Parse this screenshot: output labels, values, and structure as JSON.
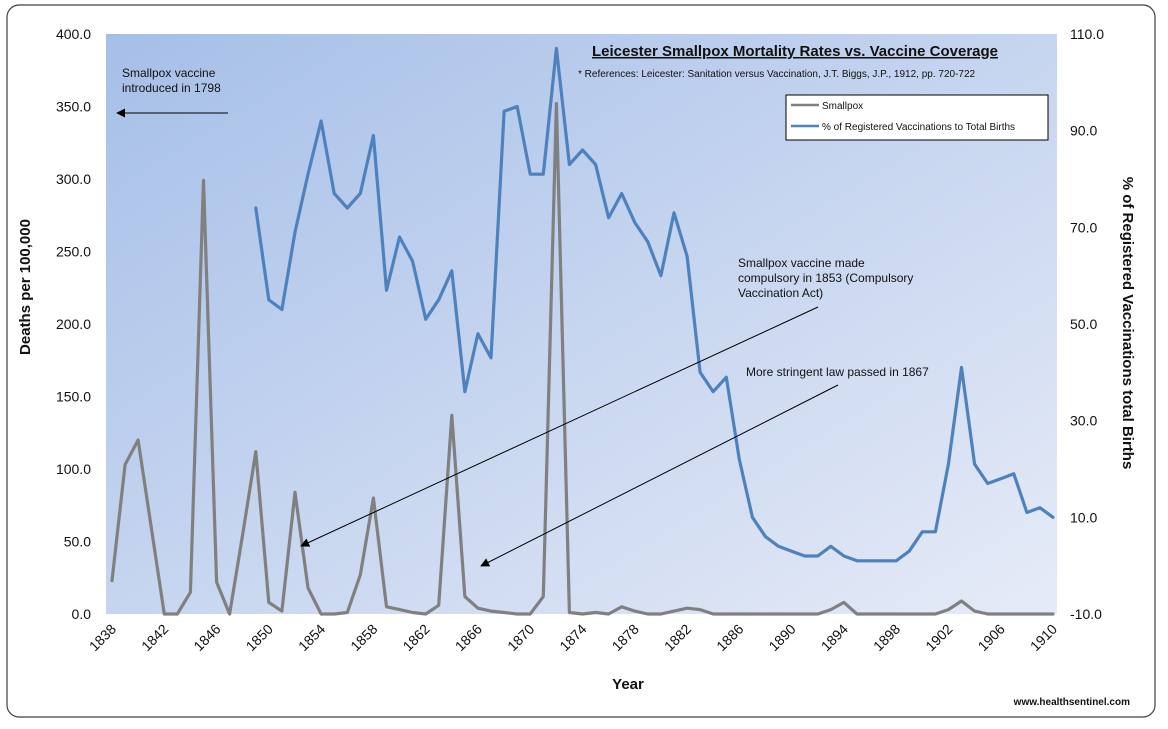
{
  "chart_data": {
    "type": "line",
    "title": "Leicester Smallpox Mortality Rates vs. Vaccine Coverage",
    "subtitle": "* References: Leicester: Sanitation versus Vaccination, J.T. Biggs, J.P., 1912, pp. 720-722",
    "xlabel": "Year",
    "ylabel_left": "Deaths per 100,000",
    "ylabel_right": "% of Registered Vaccinations total Births",
    "xlim": [
      1838,
      1910
    ],
    "ylim_left": [
      0,
      400
    ],
    "ylim_right": [
      -10,
      110
    ],
    "x_ticks": [
      "1838",
      "1842",
      "1846",
      "1850",
      "1854",
      "1858",
      "1862",
      "1866",
      "1870",
      "1874",
      "1878",
      "1882",
      "1886",
      "1890",
      "1894",
      "1898",
      "1902",
      "1906",
      "1910"
    ],
    "y_ticks_left": [
      "0.0",
      "50.0",
      "100.0",
      "150.0",
      "200.0",
      "250.0",
      "300.0",
      "350.0",
      "400.0"
    ],
    "y_ticks_right": [
      "-10.0",
      "10.0",
      "30.0",
      "50.0",
      "70.0",
      "90.0",
      "110.0"
    ],
    "legend": {
      "placement": "top-right",
      "entries": [
        "Smallpox",
        "% of Registered Vaccinations to Total Births"
      ]
    },
    "grid": false,
    "series": [
      {
        "name": "Smallpox",
        "axis": "left",
        "color": "#808080",
        "x": [
          1838,
          1839,
          1840,
          1841,
          1842,
          1843,
          1844,
          1845,
          1846,
          1847,
          1848,
          1849,
          1850,
          1851,
          1852,
          1853,
          1854,
          1855,
          1856,
          1857,
          1858,
          1859,
          1860,
          1861,
          1862,
          1863,
          1864,
          1865,
          1866,
          1867,
          1868,
          1869,
          1870,
          1871,
          1872,
          1873,
          1874,
          1875,
          1876,
          1877,
          1878,
          1879,
          1880,
          1881,
          1882,
          1883,
          1884,
          1885,
          1886,
          1887,
          1888,
          1889,
          1890,
          1891,
          1892,
          1893,
          1894,
          1895,
          1896,
          1897,
          1898,
          1899,
          1900,
          1901,
          1902,
          1903,
          1904,
          1905,
          1906,
          1907,
          1908,
          1909,
          1910
        ],
        "values": [
          23,
          103,
          120,
          60,
          0,
          0,
          15,
          299,
          22,
          0,
          55,
          112,
          8,
          2,
          84,
          18,
          0,
          0,
          1,
          27,
          80,
          5,
          3,
          1,
          0,
          6,
          137,
          12,
          4,
          2,
          1,
          0,
          0,
          12,
          352,
          1,
          0,
          1,
          0,
          5,
          2,
          0,
          0,
          2,
          4,
          3,
          0,
          0,
          0,
          0,
          0,
          0,
          0,
          0,
          0,
          3,
          8,
          0,
          0,
          0,
          0,
          0,
          0,
          0,
          3,
          9,
          2,
          0,
          0,
          0,
          0,
          0,
          0
        ]
      },
      {
        "name": "% of Registered Vaccinations to Total Births",
        "axis": "right",
        "color": "#4f81bd",
        "x": [
          1849,
          1850,
          1851,
          1852,
          1853,
          1854,
          1855,
          1856,
          1857,
          1858,
          1859,
          1860,
          1861,
          1862,
          1863,
          1864,
          1865,
          1866,
          1867,
          1868,
          1869,
          1870,
          1871,
          1872,
          1873,
          1874,
          1875,
          1876,
          1877,
          1878,
          1879,
          1880,
          1881,
          1882,
          1883,
          1884,
          1885,
          1886,
          1887,
          1888,
          1889,
          1890,
          1891,
          1892,
          1893,
          1894,
          1895,
          1896,
          1897,
          1898,
          1899,
          1900,
          1901,
          1902,
          1903,
          1904,
          1905,
          1906,
          1907,
          1908,
          1909,
          1910
        ],
        "values": [
          74,
          55,
          53,
          69,
          81,
          92,
          77,
          74,
          77,
          89,
          57,
          68,
          63,
          51,
          55,
          61,
          36,
          48,
          43,
          94,
          95,
          81,
          81,
          107,
          83,
          86,
          83,
          72,
          77,
          71,
          67,
          60,
          73,
          64,
          40,
          36,
          39,
          22,
          10,
          6,
          4,
          3,
          2,
          2,
          4,
          2,
          1,
          1,
          1,
          1,
          3,
          7,
          7,
          21,
          41,
          21,
          17,
          18,
          19,
          11,
          12,
          10
        ]
      }
    ],
    "annotations": [
      {
        "text": [
          "Smallpox vaccine",
          "introduced in 1798"
        ]
      },
      {
        "text": [
          "Smallpox vaccine made",
          "compulsory in 1853 (Compulsory",
          "Vaccination Act)"
        ]
      },
      {
        "text": [
          "More stringent law passed in 1867"
        ]
      }
    ],
    "credit": "www.healthsentinel.com"
  },
  "colors": {
    "plot_bg_start": "#a6bfe8",
    "plot_bg_end": "#e6ebf7",
    "smallpox_line": "#808080",
    "vaccination_line": "#4f81bd"
  }
}
